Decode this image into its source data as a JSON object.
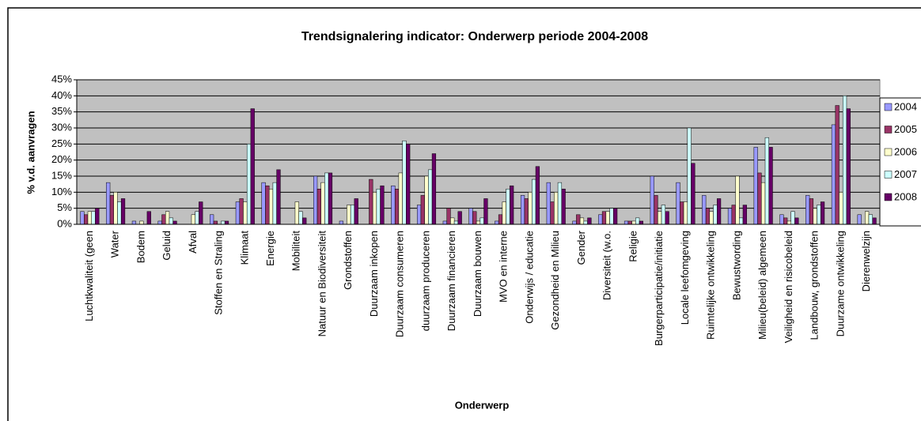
{
  "chart_data": {
    "type": "bar",
    "title": "Trendsignalering indicator: Onderwerp periode 2004-2008",
    "x_label": "Onderwerp",
    "y_label": "% v.d. aanvragen",
    "categories": [
      "Luchtkwaliteit (geen",
      "Water",
      "Bodem",
      "Geluid",
      "Afval",
      "Stoffen en Straling",
      "Klimaat",
      "Energie",
      "Mobiliteit",
      "Natuur en Biodiversiteit",
      "Grondstoffen",
      "Duurzaam inkopen",
      "Duurzaam consumeren",
      "duurzaam produceren",
      "Duurzaam financieren",
      "Duurzaam bouwen",
      "MVO en interne",
      "Onderwijs / educatie",
      "Gezondheid en Milieu",
      "Gender",
      "Diversiteit (w.o.",
      "Religie",
      "Burgerparticipatie/initiatie",
      "Locale leefomgeving",
      "Ruimtelijke ontwikkeling",
      "Bewustwording",
      "Milieu(beleid) algemeen",
      "Veiligheid en risicobeleid",
      "Landbouw, grondstoffen",
      "Duurzame ontwikkeling",
      "Dierenwelzijn"
    ],
    "series": [
      {
        "name": "2004",
        "color": "#9999ff",
        "values": [
          4,
          13,
          1,
          1,
          0,
          3,
          7,
          13,
          0,
          15,
          1,
          0,
          12,
          6,
          1,
          5,
          1,
          9,
          13,
          1,
          3,
          1,
          15,
          13,
          9,
          5,
          24,
          3,
          9,
          31,
          3
        ]
      },
      {
        "name": "2005",
        "color": "#993366",
        "values": [
          3,
          9,
          0,
          3,
          0,
          1,
          8,
          12,
          0,
          11,
          0,
          14,
          11,
          9,
          5,
          4,
          3,
          8,
          7,
          3,
          4,
          1,
          9,
          7,
          5,
          6,
          16,
          2,
          8,
          37,
          0
        ]
      },
      {
        "name": "2006",
        "color": "#ffffcc",
        "values": [
          4,
          10,
          1,
          4,
          3,
          0,
          7,
          11,
          7,
          13,
          6,
          10,
          16,
          15,
          2,
          1,
          7,
          10,
          10,
          2,
          4,
          1,
          4,
          7,
          4,
          15,
          13,
          1,
          5,
          10,
          4
        ]
      },
      {
        "name": "2007",
        "color": "#ccffff",
        "values": [
          4,
          7,
          0,
          2,
          4,
          1,
          25,
          13,
          4,
          16,
          6,
          11,
          26,
          17,
          1,
          2,
          11,
          14,
          13,
          1,
          5,
          2,
          6,
          30,
          6,
          2,
          27,
          4,
          6,
          40,
          3
        ]
      },
      {
        "name": "2008",
        "color": "#660066",
        "values": [
          5,
          8,
          4,
          1,
          7,
          1,
          36,
          17,
          2,
          16,
          8,
          12,
          25,
          22,
          4,
          8,
          12,
          18,
          11,
          2,
          5,
          1,
          4,
          19,
          8,
          6,
          24,
          2,
          7,
          36,
          2
        ]
      }
    ],
    "ylim": [
      0,
      45
    ],
    "yticks": [
      {
        "value": 0,
        "label": "0%"
      },
      {
        "value": 5,
        "label": "5%"
      },
      {
        "value": 10,
        "label": "10%"
      },
      {
        "value": 15,
        "label": "15%"
      },
      {
        "value": 20,
        "label": "20%"
      },
      {
        "value": 25,
        "label": "25%"
      },
      {
        "value": 30,
        "label": "30%"
      },
      {
        "value": 35,
        "label": "35%"
      },
      {
        "value": 40,
        "label": "40%"
      },
      {
        "value": 45,
        "label": "45%"
      }
    ],
    "grid": true,
    "plot_background": "#c0c0c0",
    "legend": "right"
  }
}
